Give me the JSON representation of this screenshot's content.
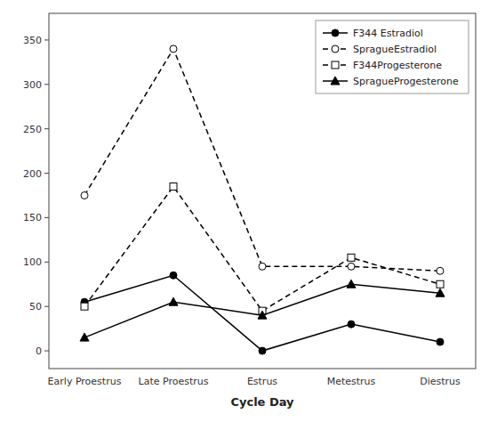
{
  "chart_data": {
    "type": "line",
    "xlabel": "Cycle Day",
    "categories": [
      "Early Proestrus",
      "Late Proestrus",
      "Estrus",
      "Metestrus",
      "Diestrus"
    ],
    "series": [
      {
        "name": "F344 Estradiol",
        "color": "#000000",
        "marker": "circle-filled",
        "line_style": "solid",
        "values": [
          55,
          85,
          0,
          30,
          10
        ]
      },
      {
        "name": "SpragueEstradiol",
        "color": "#000000",
        "marker": "circle-open",
        "line_style": "dashed",
        "values": [
          175,
          340,
          95,
          95,
          90
        ]
      },
      {
        "name": "F344Progesterone",
        "color": "#000000",
        "marker": "square-open",
        "line_style": "dashed",
        "values": [
          50,
          185,
          45,
          105,
          75
        ]
      },
      {
        "name": "SpragueProgesterone",
        "color": "#000000",
        "marker": "triangle-filled",
        "line_style": "solid",
        "values": [
          15,
          55,
          40,
          75,
          65
        ]
      }
    ],
    "ylim": [
      -20,
      380
    ],
    "yticks": [
      0,
      50,
      100,
      150,
      200,
      250,
      300,
      350
    ],
    "grid": false,
    "legend": "upper right"
  }
}
